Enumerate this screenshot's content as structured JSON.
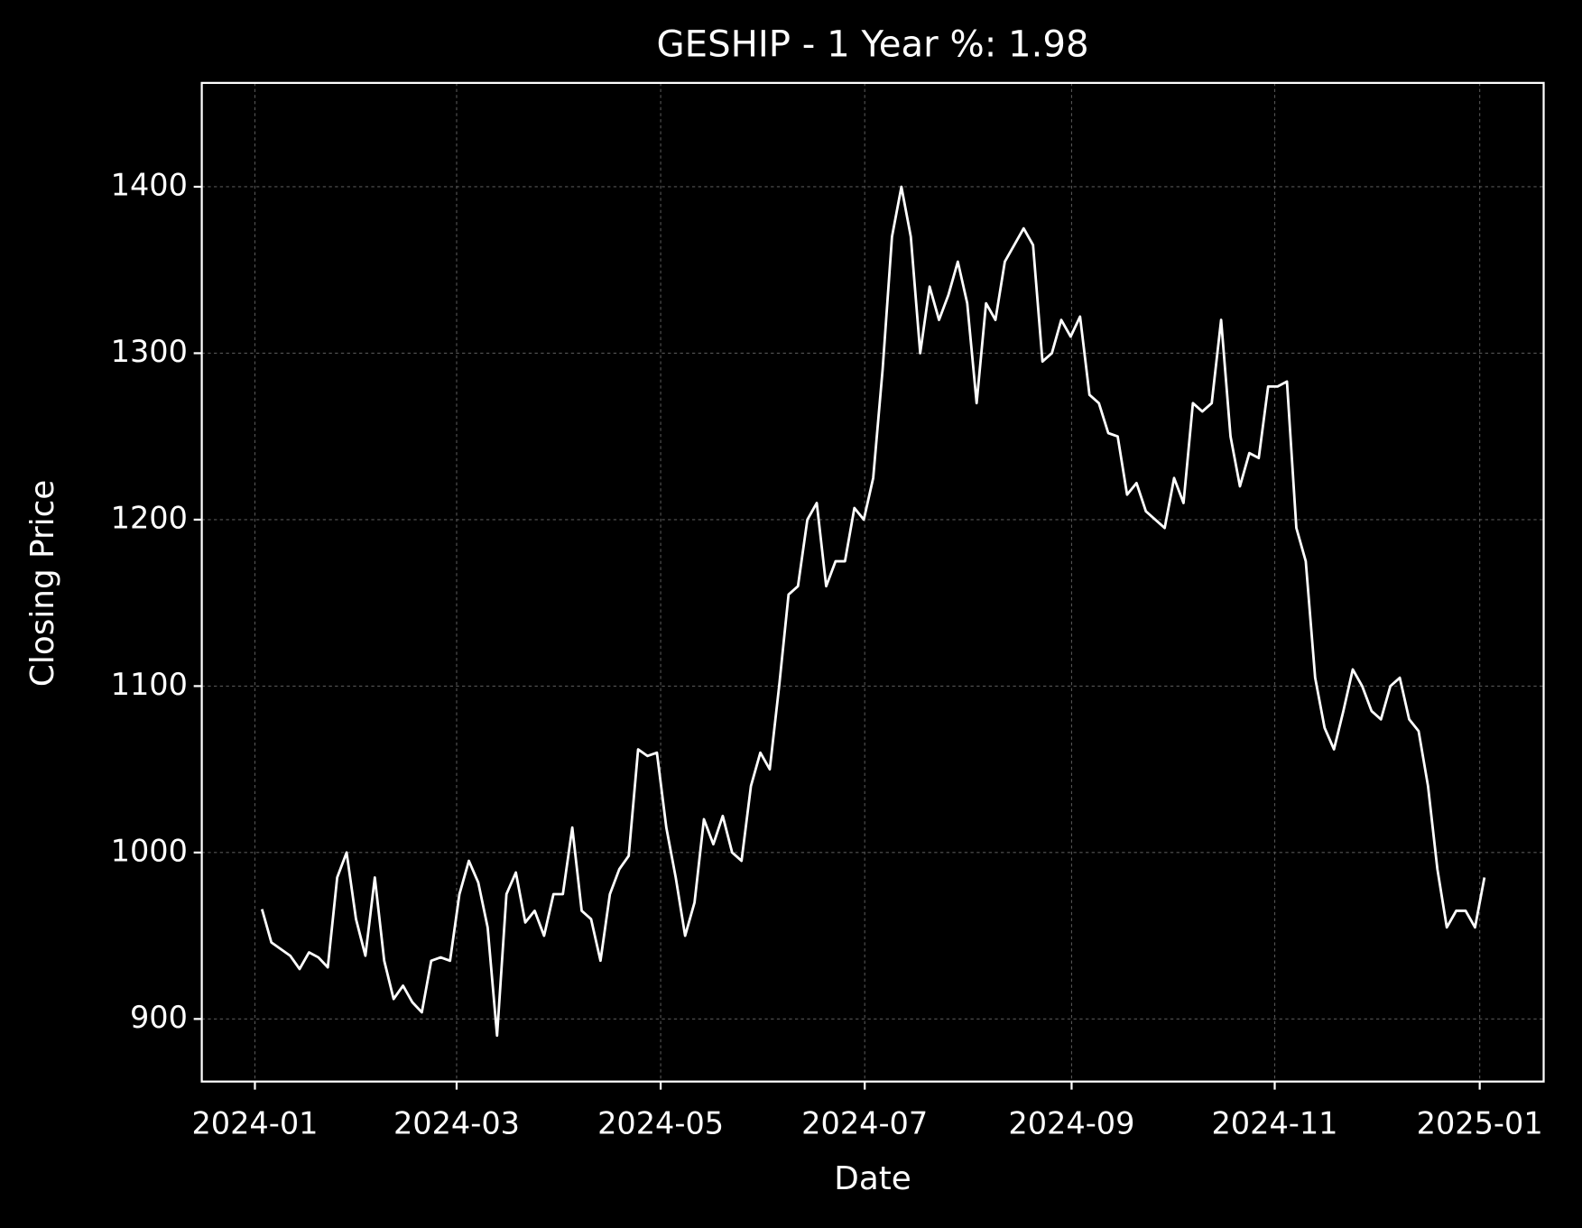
{
  "chart_data": {
    "type": "line",
    "title": "GESHIP - 1 Year %: 1.98",
    "x_label": "Date",
    "y_label": "Closing Price",
    "series": [
      {
        "name": "GESHIP",
        "color": "#ffffff",
        "values": [
          966,
          946,
          942,
          938,
          930,
          940,
          937,
          931,
          985,
          1000,
          960,
          938,
          985,
          935,
          912,
          920,
          910,
          904,
          935,
          937,
          935,
          975,
          995,
          982,
          955,
          890,
          975,
          988,
          958,
          965,
          950,
          975,
          975,
          1015,
          965,
          960,
          935,
          975,
          990,
          998,
          1062,
          1058,
          1060,
          1015,
          985,
          950,
          970,
          1020,
          1005,
          1022,
          1000,
          995,
          1040,
          1060,
          1050,
          1100,
          1155,
          1160,
          1200,
          1210,
          1160,
          1175,
          1175,
          1207,
          1200,
          1225,
          1290,
          1370,
          1400,
          1370,
          1300,
          1340,
          1320,
          1335,
          1355,
          1330,
          1270,
          1330,
          1320,
          1355,
          1365,
          1375,
          1365,
          1295,
          1300,
          1320,
          1310,
          1322,
          1275,
          1270,
          1252,
          1250,
          1215,
          1222,
          1205,
          1200,
          1195,
          1225,
          1210,
          1270,
          1265,
          1270,
          1320,
          1250,
          1220,
          1240,
          1237,
          1280,
          1280,
          1283,
          1195,
          1175,
          1105,
          1075,
          1062,
          1085,
          1110,
          1100,
          1085,
          1080,
          1100,
          1105,
          1080,
          1073,
          1040,
          990,
          955,
          965,
          965,
          955,
          985
        ]
      }
    ],
    "xlim": [
      -6.4,
      136.3
    ],
    "xticks": [
      {
        "value": -0.75,
        "label": "2024-01"
      },
      {
        "value": 20.7,
        "label": "2024-03"
      },
      {
        "value": 42.4,
        "label": "2024-05"
      },
      {
        "value": 64.1,
        "label": "2024-07"
      },
      {
        "value": 86.1,
        "label": "2024-09"
      },
      {
        "value": 107.7,
        "label": "2024-11"
      },
      {
        "value": 129.5,
        "label": "2025-01"
      }
    ],
    "ylim": [
      862.4,
      1462.4
    ],
    "yticks": [
      900,
      1000,
      1100,
      1200,
      1300,
      1400
    ],
    "grid": true
  }
}
